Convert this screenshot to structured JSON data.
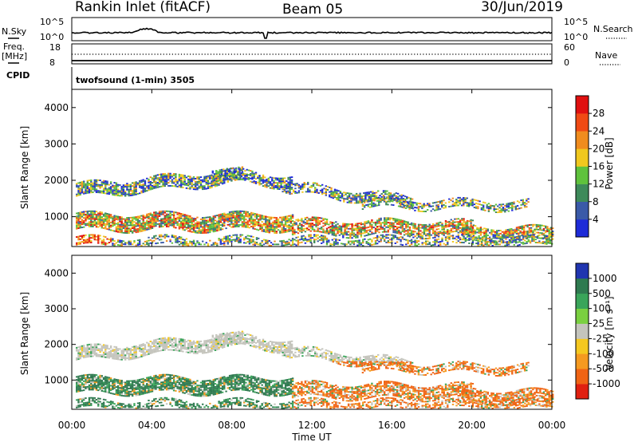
{
  "header": {
    "station": "Rankin Inlet (fitACF)",
    "beam": "Beam 05",
    "date": "30/Jun/2019"
  },
  "noise_panel": {
    "left_label": "N.Sky",
    "right_label": "N.Search",
    "left_ticks": [
      "10^5",
      "10^0"
    ],
    "right_ticks": [
      "10^5",
      "10^0"
    ]
  },
  "freq_panel": {
    "left_label_line1": "Freq.",
    "left_label_line2": "[MHz]",
    "right_label": "Nave",
    "left_ticks": [
      "18",
      "8"
    ],
    "right_ticks": [
      "60",
      "0"
    ]
  },
  "cpid": {
    "label": "CPID",
    "text": "twofsound (1-min) 3505"
  },
  "chart_data": [
    {
      "type": "heatmap",
      "title": "",
      "quantity": "Power",
      "ylabel": "Slant Range [km]",
      "xlabel": "",
      "ylim": [
        180,
        4500
      ],
      "xlim_hours": [
        0,
        24
      ],
      "yticks": [
        "1000",
        "2000",
        "3000",
        "4000"
      ],
      "xticks": [
        "00:00",
        "04:00",
        "08:00",
        "12:00",
        "16:00",
        "20:00",
        "00:00"
      ],
      "colorbar": {
        "label": "Power [dB]",
        "ticks": [
          "4",
          "8",
          "12",
          "16",
          "20",
          "24",
          "28"
        ],
        "colors": [
          "#1e2bd8",
          "#3a5aa8",
          "#3e8a5a",
          "#5fc23c",
          "#f0c81e",
          "#f08c1e",
          "#f04a14",
          "#e01010"
        ]
      }
    },
    {
      "type": "heatmap",
      "title": "",
      "quantity": "Velocity",
      "ylabel": "Slant Range [km]",
      "xlabel": "Time UT",
      "ylim": [
        180,
        4500
      ],
      "xlim_hours": [
        0,
        24
      ],
      "yticks": [
        "1000",
        "2000",
        "3000",
        "4000"
      ],
      "xticks": [
        "00:00",
        "04:00",
        "08:00",
        "12:00",
        "16:00",
        "20:00",
        "00:00"
      ],
      "colorbar": {
        "label": "Velocity [m s⁻¹]",
        "ticks": [
          "1000",
          "500",
          "100",
          "25",
          "-25",
          "-100",
          "-500",
          "-1000"
        ],
        "colors": [
          "#2035b0",
          "#2f7a50",
          "#3aa55a",
          "#7ad040",
          "#c4c4bc",
          "#f5c820",
          "#f59a20",
          "#f06414",
          "#e02010"
        ]
      }
    }
  ]
}
